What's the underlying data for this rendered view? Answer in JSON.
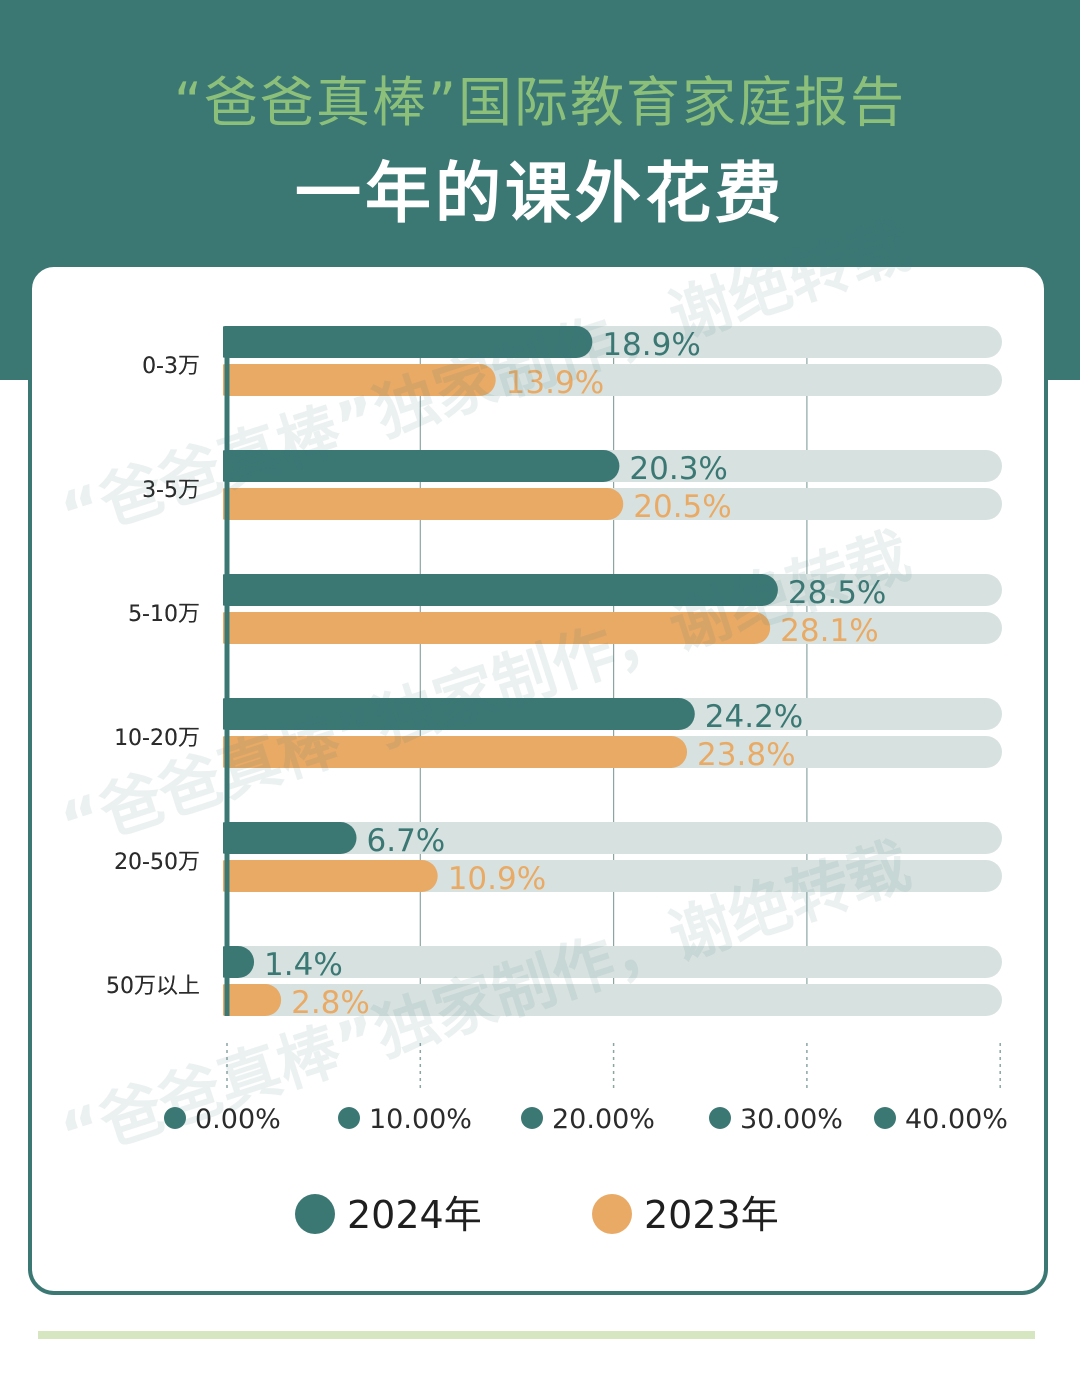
{
  "header": {
    "report_title": "“爸爸真棒”国际教育家庭报告",
    "main_title": "一年的课外花费"
  },
  "watermark": {
    "text": "“爸爸真棒”独家制作，谢绝转载"
  },
  "colors": {
    "header_bg": "#3b7874",
    "series_2024": "#3b7874",
    "series_2023": "#e9aa66",
    "track": "#d7e2e0",
    "report_title": "#8cc07a",
    "bottom_rule": "#d5e6c0"
  },
  "chart_data": {
    "type": "bar",
    "orientation": "horizontal",
    "title": "一年的课外花费",
    "categories": [
      "0-3万",
      "3-5万",
      "5-10万",
      "10-20万",
      "20-50万",
      "50万以上"
    ],
    "series": [
      {
        "name": "2024年",
        "values": [
          18.9,
          20.3,
          28.5,
          24.2,
          6.7,
          1.4
        ],
        "labels": [
          "18.9%",
          "20.3%",
          "28.5%",
          "24.2%",
          "6.7%",
          "1.4%"
        ]
      },
      {
        "name": "2023年",
        "values": [
          13.9,
          20.5,
          28.1,
          23.8,
          10.9,
          2.8
        ],
        "labels": [
          "13.9%",
          "20.5%",
          "28.1%",
          "23.8%",
          "10.9%",
          "2.8%"
        ]
      }
    ],
    "xlim": [
      0,
      40
    ],
    "x_ticks": [
      0,
      10,
      20,
      30,
      40
    ],
    "x_tick_labels": [
      "0.00%",
      "10.00%",
      "20.00%",
      "30.00%",
      "40.00%"
    ],
    "grid": true,
    "legend_position": "bottom"
  }
}
